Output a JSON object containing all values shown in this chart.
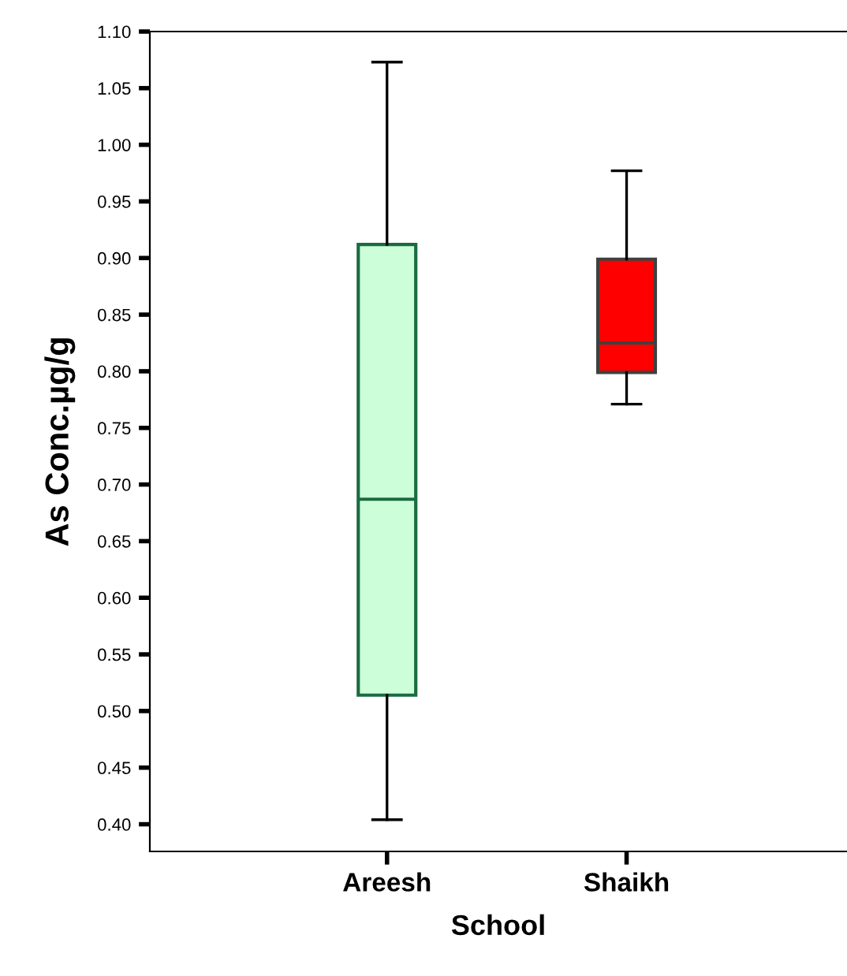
{
  "chart_data": {
    "type": "box",
    "xlabel": "School",
    "ylabel": "As Conc.µg/g",
    "categories": [
      "Areesh",
      "Shaikh"
    ],
    "colors": [
      "#ccffd9",
      "#ff0000"
    ],
    "boxes": [
      {
        "low": 0.404,
        "q1": 0.514,
        "median": 0.687,
        "q3": 0.912,
        "high": 1.073
      },
      {
        "low": 0.771,
        "q1": 0.799,
        "median": 0.825,
        "q3": 0.899,
        "high": 0.977
      }
    ],
    "ylim": [
      0.376,
      1.1
    ],
    "yticks": [
      {
        "value": 0.4,
        "label": "0.40"
      },
      {
        "value": 0.45,
        "label": "0.45"
      },
      {
        "value": 0.5,
        "label": "0.50"
      },
      {
        "value": 0.55,
        "label": "0.55"
      },
      {
        "value": 0.6,
        "label": "0.60"
      },
      {
        "value": 0.65,
        "label": "0.65"
      },
      {
        "value": 0.7,
        "label": "0.70"
      },
      {
        "value": 0.75,
        "label": "0.75"
      },
      {
        "value": 0.8,
        "label": "0.80"
      },
      {
        "value": 0.85,
        "label": "0.85"
      },
      {
        "value": 0.9,
        "label": "0.90"
      },
      {
        "value": 0.95,
        "label": "0.95"
      },
      {
        "value": 1.0,
        "label": "1.00"
      },
      {
        "value": 1.05,
        "label": "1.05"
      },
      {
        "value": 1.1,
        "label": "1.10"
      }
    ],
    "grid": false
  }
}
